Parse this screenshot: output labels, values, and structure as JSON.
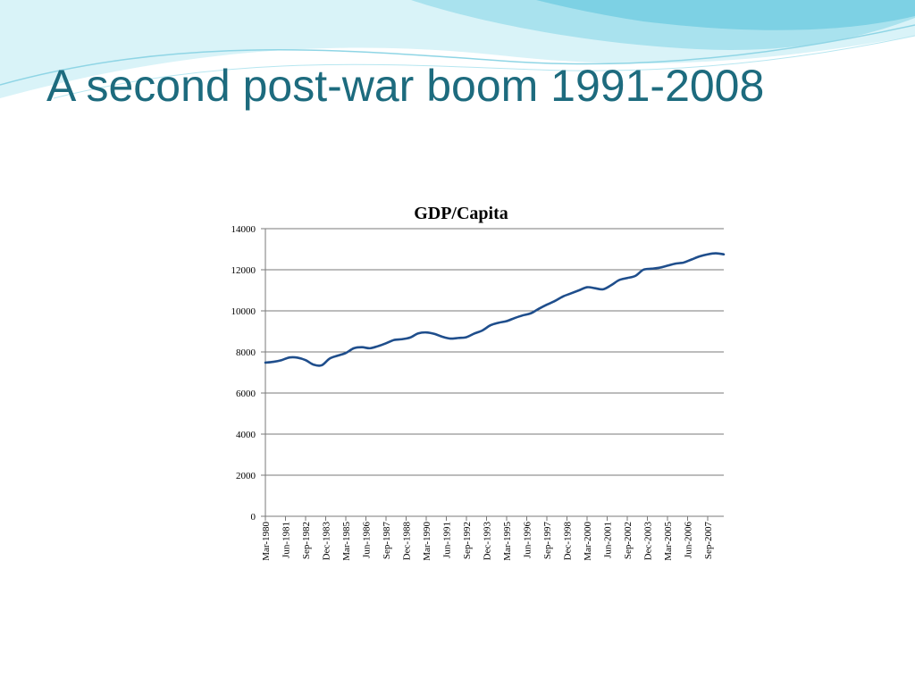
{
  "slide": {
    "title": "A second post-war boom 1991-2008"
  },
  "colors": {
    "title": "#1d6b7e",
    "series_line": "#1f4e8c",
    "wave_light": "#bfeaf2",
    "wave_mid": "#7fd3e6"
  },
  "chart_data": {
    "type": "line",
    "title": "GDP/Capita",
    "xlabel": "",
    "ylabel": "",
    "ylim": [
      0,
      14000
    ],
    "yticks": [
      0,
      2000,
      4000,
      6000,
      8000,
      10000,
      12000,
      14000
    ],
    "grid": true,
    "legend": "none",
    "x_tick_labels": [
      "Mar-1980",
      "Jun-1981",
      "Sep-1982",
      "Dec-1983",
      "Mar-1985",
      "Jun-1986",
      "Sep-1987",
      "Dec-1988",
      "Mar-1990",
      "Jun-1991",
      "Sep-1992",
      "Dec-1993",
      "Mar-1995",
      "Jun-1996",
      "Sep-1997",
      "Dec-1998",
      "Mar-2000",
      "Jun-2001",
      "Sep-2002",
      "Dec-2003",
      "Mar-2005",
      "Jun-2006",
      "Sep-2007"
    ],
    "series": [
      {
        "x": [
          "Mar-1980",
          "Sep-1980",
          "Mar-1981",
          "Sep-1981",
          "Mar-1982",
          "Sep-1982",
          "Mar-1983",
          "Sep-1983",
          "Mar-1984",
          "Sep-1984",
          "Mar-1985",
          "Sep-1985",
          "Mar-1986",
          "Sep-1986",
          "Mar-1987",
          "Sep-1987",
          "Mar-1988",
          "Sep-1988",
          "Mar-1989",
          "Sep-1989",
          "Mar-1990",
          "Sep-1990",
          "Mar-1991",
          "Sep-1991",
          "Mar-1992",
          "Sep-1992",
          "Mar-1993",
          "Sep-1993",
          "Mar-1994",
          "Sep-1994",
          "Mar-1995",
          "Sep-1995",
          "Mar-1996",
          "Sep-1996",
          "Mar-1997",
          "Sep-1997",
          "Mar-1998",
          "Sep-1998",
          "Mar-1999",
          "Sep-1999",
          "Mar-2000",
          "Sep-2000",
          "Mar-2001",
          "Sep-2001",
          "Mar-2002",
          "Sep-2002",
          "Mar-2003",
          "Sep-2003",
          "Mar-2004",
          "Sep-2004",
          "Mar-2005",
          "Sep-2005",
          "Mar-2006",
          "Sep-2006",
          "Mar-2007",
          "Sep-2007",
          "Mar-2008",
          "Sep-2008"
        ],
        "values": [
          7480,
          7520,
          7600,
          7730,
          7720,
          7600,
          7380,
          7350,
          7680,
          7820,
          7950,
          8180,
          8230,
          8180,
          8280,
          8420,
          8580,
          8620,
          8700,
          8900,
          8950,
          8880,
          8740,
          8650,
          8680,
          8720,
          8900,
          9050,
          9300,
          9420,
          9500,
          9650,
          9780,
          9880,
          10100,
          10300,
          10480,
          10700,
          10850,
          11000,
          11150,
          11100,
          11050,
          11250,
          11500,
          11600,
          11700,
          12000,
          12050,
          12100,
          12200,
          12300,
          12350,
          12500,
          12650,
          12750,
          12800,
          12750
        ]
      }
    ]
  }
}
